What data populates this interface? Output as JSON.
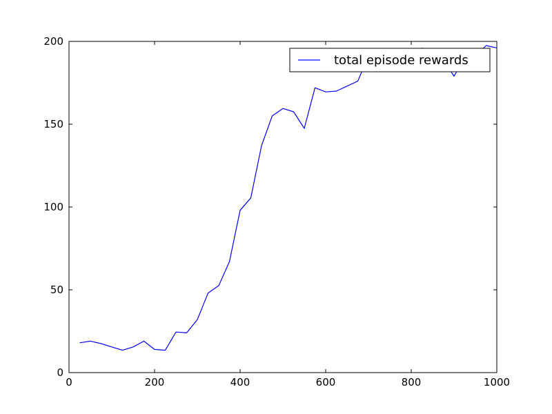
{
  "chart_data": {
    "type": "line",
    "title": "",
    "xlabel": "",
    "ylabel": "",
    "xlim": [
      0,
      1000
    ],
    "ylim": [
      0,
      200
    ],
    "xticks": [
      0,
      200,
      400,
      600,
      800,
      1000
    ],
    "yticks": [
      0,
      50,
      100,
      150,
      200
    ],
    "xtick_labels": [
      "0",
      "200",
      "400",
      "600",
      "800",
      "1000"
    ],
    "ytick_labels": [
      "0",
      "50",
      "100",
      "150",
      "200"
    ],
    "grid": false,
    "legend": {
      "position": "top-right",
      "entries": [
        "total episode rewards"
      ]
    },
    "series": [
      {
        "name": "total episode rewards",
        "color": "#0000ff",
        "x": [
          25,
          50,
          75,
          100,
          125,
          150,
          175,
          200,
          225,
          250,
          275,
          300,
          325,
          350,
          375,
          400,
          425,
          450,
          475,
          500,
          525,
          550,
          575,
          600,
          625,
          650,
          675,
          700,
          725,
          750,
          775,
          800,
          825,
          850,
          875,
          900,
          925,
          950,
          975,
          1000
        ],
        "y": [
          18,
          19,
          17.5,
          15.5,
          13.5,
          15.5,
          19,
          14,
          13.5,
          24.5,
          24,
          32,
          48,
          52.5,
          67,
          98,
          105.5,
          137,
          155,
          159.5,
          157.5,
          147.5,
          172,
          169.5,
          170,
          173,
          176,
          191,
          193,
          194,
          189,
          192,
          196,
          190,
          189,
          179,
          190,
          191,
          197.5,
          196
        ]
      }
    ]
  }
}
